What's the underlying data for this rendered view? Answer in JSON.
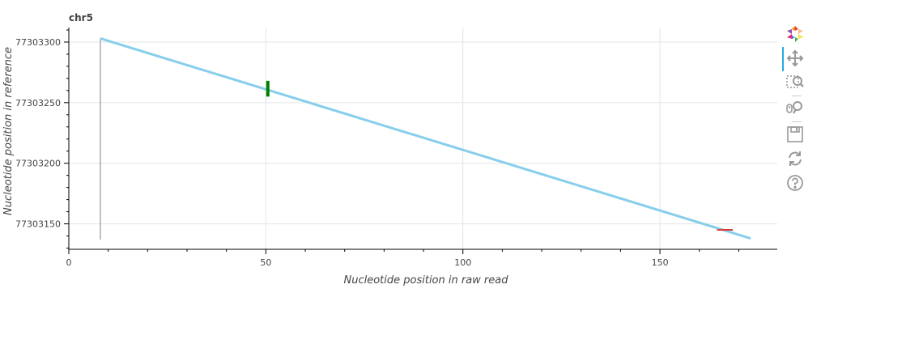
{
  "chart_data": {
    "type": "line",
    "title": "chr5",
    "xlabel": "Nucleotide position in raw read",
    "ylabel": "Nucleotide position in reference",
    "xlim": [
      0,
      181
    ],
    "ylim": [
      77303129,
      77303312
    ],
    "x_ticks": [
      0,
      50,
      100,
      150
    ],
    "x_minor_ticks": [
      10,
      20,
      30,
      40,
      60,
      70,
      80,
      90,
      110,
      120,
      130,
      140,
      160,
      170,
      180
    ],
    "y_ticks": [
      77303150,
      77303200,
      77303250,
      77303300
    ],
    "y_tick_labels": [
      "77303150",
      "77303200",
      "77303250",
      "77303300"
    ],
    "grid": true,
    "series": [
      {
        "kind": "alignment-line",
        "color": "#87ceeb",
        "x": [
          8,
          173
        ],
        "y": [
          77303303,
          77303138
        ]
      }
    ],
    "markers": [
      {
        "kind": "vertical-line",
        "color": "#808080",
        "x": 8,
        "y": [
          77303137,
          77303303
        ]
      },
      {
        "kind": "insertion-bar",
        "color": "#008000",
        "x": 50.5,
        "y": [
          77303255,
          77303268
        ]
      },
      {
        "kind": "deletion-bar",
        "color": "#dc3c3c",
        "x": [
          164.5,
          168.5
        ],
        "y": 77303145
      }
    ]
  },
  "toolbar": {
    "tools": [
      {
        "icon": "bokeh-logo-icon"
      },
      {
        "icon": "pan-icon"
      },
      {
        "icon": "box-zoom-icon"
      },
      {
        "icon": "wheel-zoom-icon"
      },
      {
        "icon": "save-icon"
      },
      {
        "icon": "reset-icon"
      },
      {
        "icon": "help-icon"
      }
    ],
    "active_color": "#26aae1"
  }
}
